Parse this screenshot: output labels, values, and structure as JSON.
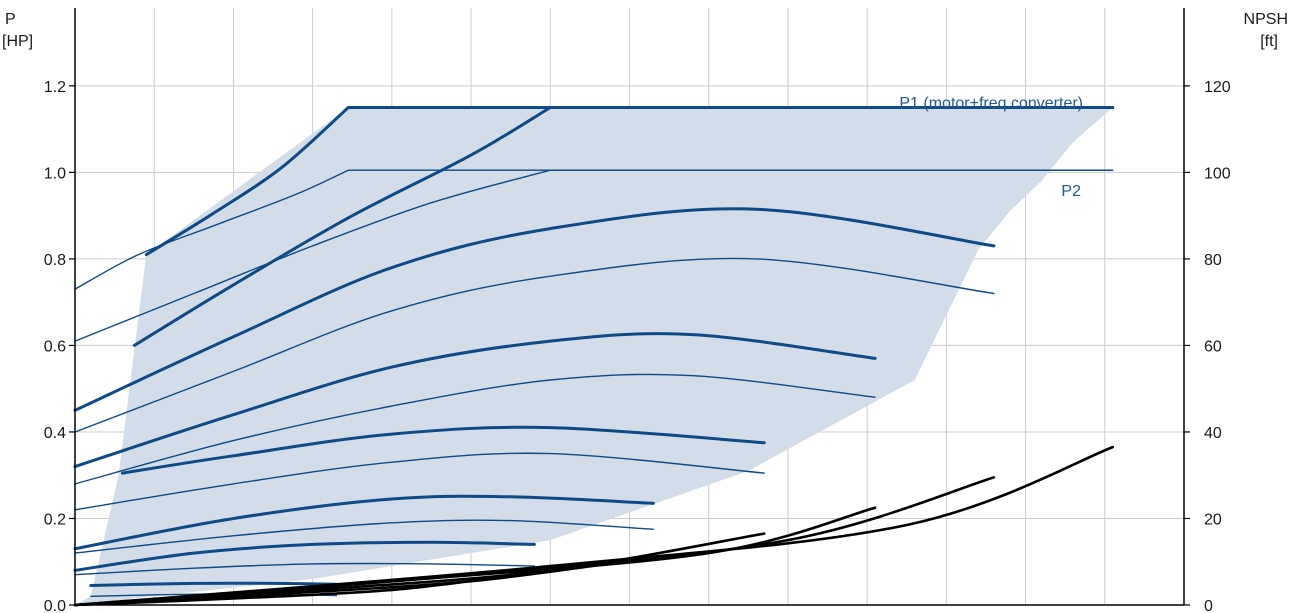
{
  "chart_data": {
    "type": "line",
    "left_axis": {
      "label": "P",
      "unit": "[HP]",
      "ticks": [
        "0.0",
        "0.2",
        "0.4",
        "0.6",
        "0.8",
        "1.0",
        "1.2"
      ],
      "ylim": [
        0,
        1.38
      ]
    },
    "right_axis": {
      "label": "NPSH",
      "unit": "[ft]",
      "ticks": [
        "0",
        "20",
        "40",
        "60",
        "80",
        "100",
        "120"
      ],
      "ylim": [
        0,
        138
      ]
    },
    "x_axis": {
      "min": 0,
      "max": 14,
      "gridlines": 14,
      "tick_labels": []
    },
    "grid": true,
    "annotations": {
      "p1": "P1 (motor+freq.converter)",
      "p2": "P2"
    },
    "colors": {
      "curve": "#0d4a86",
      "envelope": "#d2dde9",
      "npsh": "#000000",
      "grid": "#cccccc"
    },
    "envelope": [
      [
        0,
        0
      ],
      [
        0.2,
        0.02
      ],
      [
        0.55,
        0.3
      ],
      [
        0.9,
        0.81
      ],
      [
        3.45,
        1.15
      ],
      [
        13.1,
        1.15
      ],
      [
        12.6,
        1.07
      ],
      [
        12.2,
        0.98
      ],
      [
        11.8,
        0.91
      ],
      [
        11.4,
        0.82
      ],
      [
        10.6,
        0.52
      ],
      [
        8.5,
        0.31
      ],
      [
        6.0,
        0.15
      ],
      [
        3.0,
        0.06
      ],
      [
        0,
        0
      ]
    ],
    "series": [
      {
        "kind": "p1",
        "x": [
          0.9,
          1.7,
          2.6,
          3.45
        ],
        "y": [
          0.81,
          0.9,
          1.01,
          1.15
        ],
        "flat_to": 13.1
      },
      {
        "kind": "p2",
        "x": [
          0,
          0.8,
          1.8,
          2.8,
          3.45
        ],
        "y": [
          0.73,
          0.81,
          0.88,
          0.95,
          1.005
        ],
        "flat_to": 13.1
      },
      {
        "kind": "p1",
        "x": [
          0.75,
          2.0,
          3.5,
          5.0,
          6.0
        ],
        "y": [
          0.6,
          0.74,
          0.9,
          1.04,
          1.15
        ],
        "flat_to": 13.1
      },
      {
        "kind": "p2",
        "x": [
          0,
          1.5,
          3.0,
          4.5,
          6.0
        ],
        "y": [
          0.61,
          0.72,
          0.83,
          0.93,
          1.005
        ],
        "flat_to": 13.1
      },
      {
        "kind": "p1",
        "x": [
          0,
          2.0,
          4.0,
          6.0,
          8.6,
          11.6
        ],
        "y": [
          0.45,
          0.62,
          0.78,
          0.87,
          0.915,
          0.83
        ]
      },
      {
        "kind": "p2",
        "x": [
          0,
          2.0,
          4.0,
          6.0,
          8.6,
          11.6
        ],
        "y": [
          0.4,
          0.54,
          0.68,
          0.76,
          0.8,
          0.72
        ]
      },
      {
        "kind": "p1",
        "x": [
          0,
          2.0,
          4.0,
          6.0,
          7.8,
          10.1
        ],
        "y": [
          0.32,
          0.44,
          0.55,
          0.61,
          0.625,
          0.57
        ]
      },
      {
        "kind": "p2",
        "x": [
          0,
          2.0,
          4.0,
          6.0,
          7.8,
          10.1
        ],
        "y": [
          0.28,
          0.38,
          0.46,
          0.52,
          0.53,
          0.48
        ]
      },
      {
        "kind": "p1",
        "x": [
          0.6,
          2.0,
          4.0,
          6.0,
          8.7
        ],
        "y": [
          0.305,
          0.345,
          0.395,
          0.41,
          0.375
        ]
      },
      {
        "kind": "p2",
        "x": [
          0,
          2.0,
          4.0,
          6.0,
          8.7
        ],
        "y": [
          0.22,
          0.28,
          0.33,
          0.35,
          0.305
        ]
      },
      {
        "kind": "p1",
        "x": [
          0,
          2.0,
          4.0,
          5.5,
          7.3
        ],
        "y": [
          0.13,
          0.2,
          0.245,
          0.25,
          0.235
        ]
      },
      {
        "kind": "p2",
        "x": [
          0,
          2.0,
          4.0,
          5.5,
          7.3
        ],
        "y": [
          0.12,
          0.16,
          0.19,
          0.195,
          0.175
        ]
      },
      {
        "kind": "p1",
        "x": [
          0,
          1.5,
          3.0,
          4.5,
          5.8
        ],
        "y": [
          0.08,
          0.12,
          0.14,
          0.145,
          0.14
        ]
      },
      {
        "kind": "p2",
        "x": [
          0,
          1.5,
          3.0,
          4.5,
          5.8
        ],
        "y": [
          0.07,
          0.085,
          0.095,
          0.095,
          0.09
        ]
      },
      {
        "kind": "p1",
        "x": [
          0.2,
          1.5,
          2.5,
          3.3
        ],
        "y": [
          0.045,
          0.05,
          0.05,
          0.048
        ]
      },
      {
        "kind": "p2",
        "x": [
          0.2,
          1.5,
          2.5,
          3.3
        ],
        "y": [
          0.02,
          0.025,
          0.025,
          0.022
        ]
      }
    ],
    "npsh_series": [
      {
        "x": [
          0,
          2.0,
          4.0,
          5.6
        ],
        "y": [
          0,
          1.5,
          3.5,
          7
        ]
      },
      {
        "x": [
          0,
          2.5,
          5.0,
          7.3
        ],
        "y": [
          0,
          2.5,
          5.5,
          11
        ]
      },
      {
        "x": [
          0,
          3.0,
          6.0,
          8.7
        ],
        "y": [
          0,
          3.5,
          8.0,
          16.5
        ]
      },
      {
        "x": [
          0,
          4.0,
          8.0,
          10.1
        ],
        "y": [
          0,
          5.5,
          12.0,
          22.5
        ]
      },
      {
        "x": [
          0,
          5.0,
          9.0,
          11.6
        ],
        "y": [
          0,
          7.0,
          15.0,
          29.5
        ]
      },
      {
        "x": [
          0,
          6.0,
          10.5,
          13.1
        ],
        "y": [
          0,
          9.0,
          18.5,
          36.5
        ]
      }
    ]
  }
}
